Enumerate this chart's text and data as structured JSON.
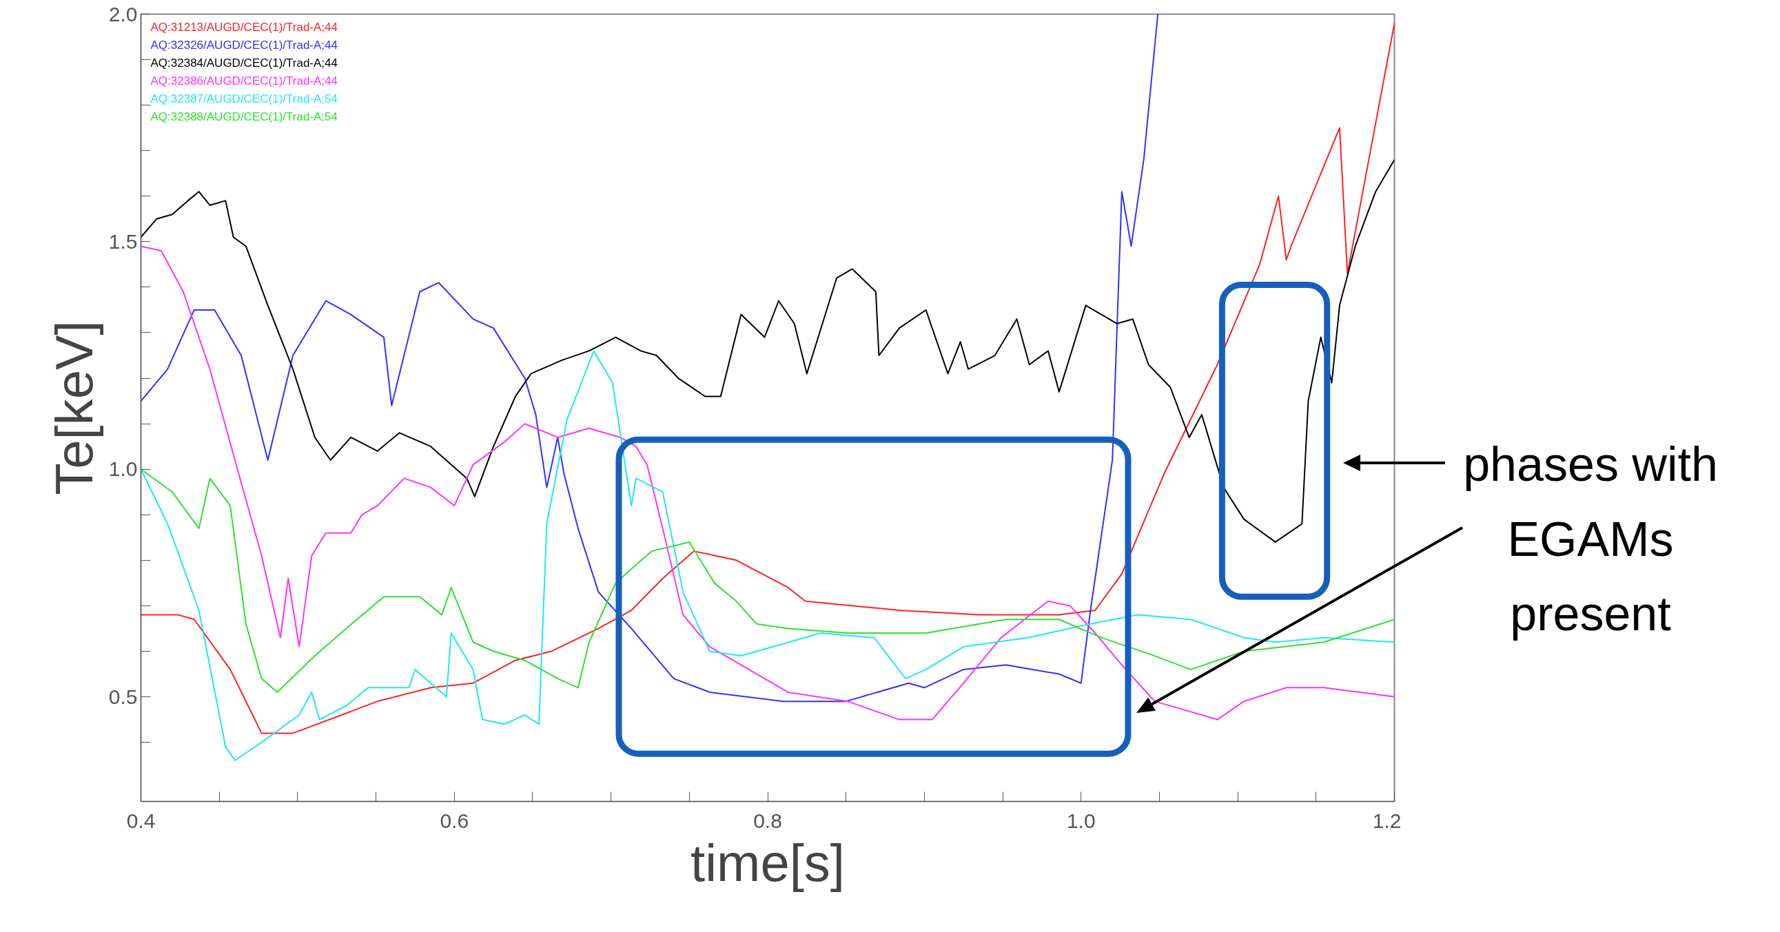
{
  "chart_data": {
    "type": "line",
    "xlabel": "time[s]",
    "ylabel": "Te[keV]",
    "xlim": [
      0.4,
      1.2
    ],
    "ylim": [
      0.27,
      2.0
    ],
    "xticks": [
      0.4,
      {
        "value": 0.45,
        "label": null
      },
      {
        "value": 0.5,
        "label": null
      },
      {
        "value": 0.55,
        "label": null
      },
      0.6,
      {
        "value": 0.65,
        "label": null
      },
      {
        "value": 0.7,
        "label": null
      },
      {
        "value": 0.75,
        "label": null
      },
      0.8,
      {
        "value": 0.85,
        "label": null
      },
      {
        "value": 0.9,
        "label": null
      },
      {
        "value": 0.95,
        "label": null
      },
      {
        "value": 1.0,
        "label": "1.0"
      },
      {
        "value": 1.05,
        "label": null
      },
      {
        "value": 1.1,
        "label": null
      },
      {
        "value": 1.15,
        "label": null
      },
      1.2
    ],
    "yticks": [
      {
        "value": 0.4,
        "label": null
      },
      0.5,
      {
        "value": 0.6,
        "label": null
      },
      {
        "value": 0.7,
        "label": null
      },
      {
        "value": 0.8,
        "label": null
      },
      {
        "value": 0.9,
        "label": null
      },
      {
        "value": 1.0,
        "label": "1.0"
      },
      {
        "value": 1.1,
        "label": null
      },
      {
        "value": 1.2,
        "label": null
      },
      {
        "value": 1.3,
        "label": null
      },
      {
        "value": 1.4,
        "label": null
      },
      1.5,
      {
        "value": 1.6,
        "label": null
      },
      {
        "value": 1.7,
        "label": null
      },
      {
        "value": 1.8,
        "label": null
      },
      {
        "value": 1.9,
        "label": null
      },
      {
        "value": 2.0,
        "label": "2.0"
      }
    ],
    "grid": false,
    "legend": "top left",
    "marker": "none",
    "line_style": "solid",
    "annotations": [
      "phases with\nEGAMs\npresent"
    ],
    "series": [
      {
        "name": "AQ:31213/AUGD/CEC(1)/Trad-A;44",
        "color": "#ff2020",
        "x": [
          0.4,
          0.424,
          0.434,
          0.457,
          0.477,
          0.497,
          0.528,
          0.551,
          0.585,
          0.612,
          0.639,
          0.662,
          0.692,
          0.713,
          0.733,
          0.753,
          0.78,
          0.813,
          0.824,
          0.884,
          0.935,
          0.986,
          1.009,
          1.026,
          1.053,
          1.087,
          1.114,
          1.126,
          1.131,
          1.134,
          1.165,
          1.17,
          1.2
        ],
        "values": [
          0.68,
          0.68,
          0.67,
          0.56,
          0.42,
          0.42,
          0.46,
          0.49,
          0.52,
          0.53,
          0.58,
          0.6,
          0.65,
          0.69,
          0.76,
          0.82,
          0.8,
          0.74,
          0.71,
          0.69,
          0.68,
          0.68,
          0.69,
          0.77,
          0.99,
          1.23,
          1.45,
          1.6,
          1.46,
          1.49,
          1.75,
          1.43,
          1.98
        ]
      },
      {
        "name": "AQ:32326/AUGD/CEC(1)/Trad-A;44",
        "color": "#3030ff",
        "x": [
          0.4,
          0.417,
          0.434,
          0.447,
          0.464,
          0.481,
          0.497,
          0.518,
          0.534,
          0.555,
          0.56,
          0.578,
          0.59,
          0.612,
          0.625,
          0.645,
          0.652,
          0.659,
          0.666,
          0.67,
          0.679,
          0.692,
          0.713,
          0.74,
          0.763,
          0.81,
          0.85,
          0.89,
          0.9,
          0.925,
          0.952,
          0.986,
          1.0,
          1.006,
          1.02,
          1.026,
          1.032,
          1.04,
          1.049
        ],
        "values": [
          1.15,
          1.22,
          1.35,
          1.35,
          1.25,
          1.02,
          1.25,
          1.37,
          1.34,
          1.29,
          1.14,
          1.39,
          1.41,
          1.33,
          1.31,
          1.2,
          1.12,
          0.96,
          1.07,
          0.99,
          0.87,
          0.73,
          0.65,
          0.54,
          0.51,
          0.49,
          0.49,
          0.53,
          0.52,
          0.56,
          0.57,
          0.55,
          0.53,
          0.69,
          1.02,
          1.61,
          1.49,
          1.68,
          2.0
        ]
      },
      {
        "name": "AQ:32384/AUGD/CEC(1)/Trad-A;44",
        "color": "#000000",
        "x": [
          0.4,
          0.41,
          0.42,
          0.43,
          0.437,
          0.444,
          0.454,
          0.459,
          0.467,
          0.481,
          0.497,
          0.511,
          0.521,
          0.534,
          0.551,
          0.565,
          0.585,
          0.598,
          0.608,
          0.613,
          0.625,
          0.639,
          0.649,
          0.669,
          0.686,
          0.703,
          0.719,
          0.729,
          0.743,
          0.76,
          0.77,
          0.783,
          0.798,
          0.807,
          0.817,
          0.825,
          0.844,
          0.854,
          0.869,
          0.871,
          0.884,
          0.901,
          0.915,
          0.923,
          0.928,
          0.945,
          0.959,
          0.967,
          0.979,
          0.986,
          1.003,
          1.023,
          1.033,
          1.043,
          1.057,
          1.069,
          1.077,
          1.091,
          1.104,
          1.124,
          1.141,
          1.145,
          1.153,
          1.16,
          1.165,
          1.175,
          1.188,
          1.2
        ],
        "values": [
          1.51,
          1.55,
          1.56,
          1.59,
          1.61,
          1.58,
          1.59,
          1.51,
          1.49,
          1.36,
          1.22,
          1.07,
          1.02,
          1.07,
          1.04,
          1.08,
          1.05,
          1.01,
          0.98,
          0.94,
          1.05,
          1.16,
          1.21,
          1.24,
          1.26,
          1.29,
          1.26,
          1.25,
          1.2,
          1.16,
          1.16,
          1.34,
          1.29,
          1.37,
          1.32,
          1.21,
          1.42,
          1.44,
          1.39,
          1.25,
          1.31,
          1.35,
          1.21,
          1.28,
          1.22,
          1.25,
          1.33,
          1.23,
          1.26,
          1.17,
          1.36,
          1.32,
          1.33,
          1.23,
          1.18,
          1.07,
          1.12,
          0.96,
          0.89,
          0.84,
          0.88,
          1.15,
          1.29,
          1.19,
          1.36,
          1.49,
          1.61,
          1.68
        ]
      },
      {
        "name": "AQ:32386/AUGD/CEC(1)/Trad-A;44",
        "color": "#ff30ff",
        "x": [
          0.4,
          0.413,
          0.427,
          0.444,
          0.46,
          0.477,
          0.489,
          0.494,
          0.501,
          0.509,
          0.518,
          0.534,
          0.541,
          0.551,
          0.568,
          0.585,
          0.6,
          0.612,
          0.632,
          0.645,
          0.666,
          0.686,
          0.706,
          0.716,
          0.723,
          0.733,
          0.746,
          0.763,
          0.813,
          0.851,
          0.884,
          0.905,
          0.925,
          0.949,
          0.979,
          0.993,
          1.009,
          1.026,
          1.047,
          1.087,
          1.104,
          1.131,
          1.155,
          1.2
        ],
        "values": [
          1.49,
          1.48,
          1.39,
          1.22,
          1.02,
          0.81,
          0.63,
          0.76,
          0.61,
          0.81,
          0.86,
          0.86,
          0.9,
          0.92,
          0.98,
          0.96,
          0.92,
          1.01,
          1.06,
          1.1,
          1.07,
          1.09,
          1.07,
          1.05,
          1.01,
          0.87,
          0.68,
          0.61,
          0.51,
          0.49,
          0.45,
          0.45,
          0.53,
          0.63,
          0.71,
          0.7,
          0.64,
          0.57,
          0.49,
          0.45,
          0.49,
          0.52,
          0.52,
          0.5
        ]
      },
      {
        "name": "AQ:32387/AUGD/CEC(1)/Trad-A;54",
        "color": "#20e8f0",
        "x": [
          0.4,
          0.417,
          0.437,
          0.454,
          0.46,
          0.477,
          0.501,
          0.509,
          0.514,
          0.531,
          0.545,
          0.571,
          0.575,
          0.595,
          0.598,
          0.612,
          0.618,
          0.632,
          0.645,
          0.654,
          0.659,
          0.672,
          0.689,
          0.701,
          0.713,
          0.716,
          0.733,
          0.746,
          0.763,
          0.783,
          0.834,
          0.868,
          0.888,
          0.901,
          0.925,
          0.966,
          1.006,
          1.036,
          1.07,
          1.104,
          1.124,
          1.155,
          1.2
        ],
        "values": [
          1.0,
          0.88,
          0.69,
          0.39,
          0.36,
          0.4,
          0.46,
          0.51,
          0.45,
          0.48,
          0.52,
          0.52,
          0.56,
          0.5,
          0.64,
          0.56,
          0.45,
          0.44,
          0.46,
          0.44,
          0.88,
          1.11,
          1.26,
          1.19,
          0.92,
          0.98,
          0.95,
          0.73,
          0.6,
          0.59,
          0.64,
          0.63,
          0.54,
          0.56,
          0.61,
          0.63,
          0.66,
          0.68,
          0.67,
          0.63,
          0.62,
          0.63,
          0.62
        ]
      },
      {
        "name": "AQ:32388/AUGD/CEC(1)/Trad-A;54",
        "color": "#30e030",
        "x": [
          0.4,
          0.42,
          0.437,
          0.444,
          0.457,
          0.467,
          0.477,
          0.487,
          0.511,
          0.531,
          0.555,
          0.578,
          0.592,
          0.598,
          0.612,
          0.625,
          0.645,
          0.666,
          0.679,
          0.686,
          0.703,
          0.726,
          0.75,
          0.766,
          0.78,
          0.793,
          0.813,
          0.851,
          0.901,
          0.952,
          0.986,
          1.013,
          1.047,
          1.07,
          1.104,
          1.155,
          1.2
        ],
        "values": [
          1.0,
          0.95,
          0.87,
          0.98,
          0.92,
          0.66,
          0.54,
          0.51,
          0.59,
          0.65,
          0.72,
          0.72,
          0.68,
          0.74,
          0.62,
          0.6,
          0.58,
          0.54,
          0.52,
          0.62,
          0.75,
          0.82,
          0.84,
          0.75,
          0.71,
          0.66,
          0.65,
          0.64,
          0.64,
          0.67,
          0.67,
          0.63,
          0.59,
          0.56,
          0.6,
          0.62,
          0.67
        ]
      }
    ]
  }
}
